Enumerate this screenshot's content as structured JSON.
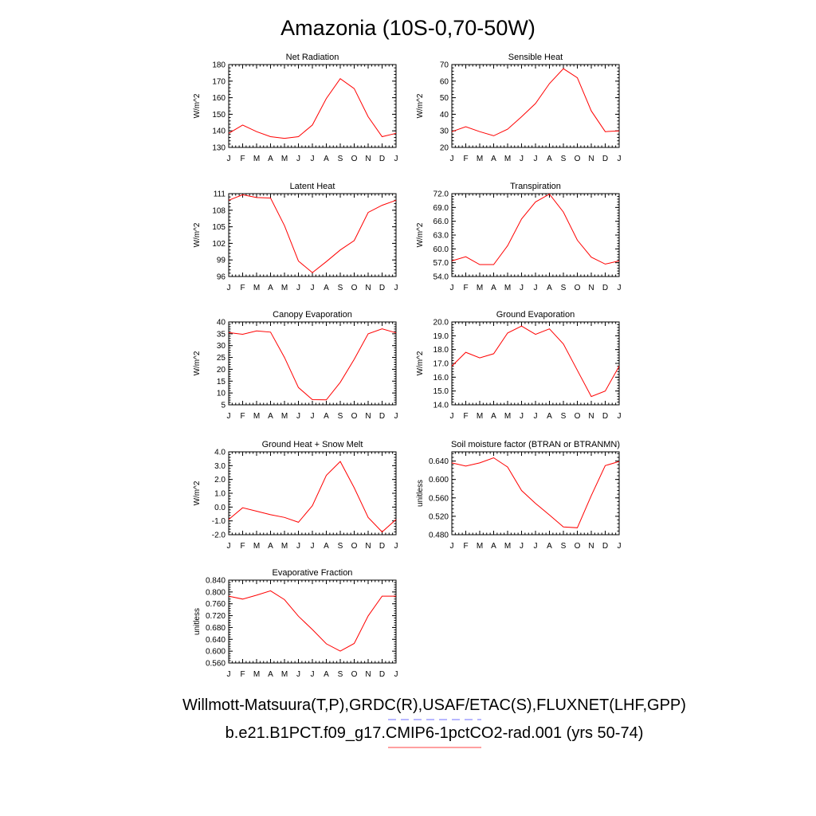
{
  "figure": {
    "title": "Amazonia (10S-0,70-50W)"
  },
  "months": [
    "J",
    "F",
    "M",
    "A",
    "M",
    "J",
    "J",
    "A",
    "S",
    "O",
    "N",
    "D",
    "J"
  ],
  "legend": [
    {
      "label": "Willmott-Matsuura(T,P),GRDC(R),USAF/ETAC(S),FLUXNET(LHF,GPP)",
      "color": "#7070ff",
      "dash": true
    },
    {
      "label": "b.e21.B1PCT.f09_g17.CMIP6-1pctCO2-rad.001 (yrs 50-74)",
      "color": "#ff4040",
      "dash": false
    }
  ],
  "chart_data": [
    {
      "type": "line",
      "title": "Net Radiation",
      "ylabel": "W/m^2",
      "ylim": [
        130,
        180
      ],
      "yticks": [
        "130",
        "140",
        "150",
        "160",
        "170",
        "180"
      ],
      "series": [
        {
          "color": "#ff0000",
          "values": [
            138.5,
            143.5,
            139.5,
            136.5,
            135.5,
            136.5,
            143.5,
            159.5,
            171.5,
            165.5,
            148.5,
            136.5,
            138.5
          ]
        }
      ]
    },
    {
      "type": "line",
      "title": "Sensible Heat",
      "ylabel": "W/m^2",
      "ylim": [
        20,
        70
      ],
      "yticks": [
        "20",
        "30",
        "40",
        "50",
        "60",
        "70"
      ],
      "series": [
        {
          "color": "#ff0000",
          "values": [
            29.5,
            32.5,
            29.5,
            27.0,
            31.0,
            38.5,
            46.5,
            58.5,
            67.5,
            62.0,
            42.0,
            29.5,
            30.0
          ]
        }
      ]
    },
    {
      "type": "line",
      "title": "Latent Heat",
      "ylabel": "W/m^2",
      "ylim": [
        96,
        111
      ],
      "yticks": [
        "96",
        "99",
        "102",
        "105",
        "108",
        "111"
      ],
      "series": [
        {
          "color": "#ff0000",
          "values": [
            109.8,
            110.8,
            110.3,
            110.2,
            105.2,
            98.8,
            96.7,
            98.7,
            100.8,
            102.5,
            107.6,
            108.9,
            109.8
          ]
        }
      ]
    },
    {
      "type": "line",
      "title": "Transpiration",
      "ylabel": "W/m^2",
      "ylim": [
        54,
        72
      ],
      "yticks": [
        "54.0",
        "57.0",
        "60.0",
        "63.0",
        "66.0",
        "69.0",
        "72.0"
      ],
      "series": [
        {
          "color": "#ff0000",
          "values": [
            57.4,
            58.3,
            56.6,
            56.6,
            60.7,
            66.5,
            70.2,
            71.9,
            68.0,
            61.9,
            58.2,
            56.7,
            57.4
          ]
        }
      ]
    },
    {
      "type": "line",
      "title": "Canopy Evaporation",
      "ylabel": "W/m^2",
      "ylim": [
        5,
        40
      ],
      "yticks": [
        "5",
        "10",
        "15",
        "20",
        "25",
        "30",
        "35",
        "40"
      ],
      "series": [
        {
          "color": "#ff0000",
          "values": [
            35.5,
            34.8,
            36.2,
            35.7,
            25.0,
            12.3,
            7.2,
            7.1,
            14.5,
            24.2,
            35.0,
            37.1,
            35.4
          ]
        }
      ]
    },
    {
      "type": "line",
      "title": "Ground Evaporation",
      "ylabel": "W/m^2",
      "ylim": [
        14,
        20
      ],
      "yticks": [
        "14.0",
        "15.0",
        "16.0",
        "17.0",
        "18.0",
        "19.0",
        "20.0"
      ],
      "series": [
        {
          "color": "#ff0000",
          "values": [
            16.8,
            17.8,
            17.4,
            17.7,
            19.2,
            19.7,
            19.1,
            19.5,
            18.4,
            16.5,
            14.6,
            15.0,
            16.8
          ]
        }
      ]
    },
    {
      "type": "line",
      "title": "Ground Heat + Snow Melt",
      "ylabel": "W/m^2",
      "ylim": [
        -2,
        4
      ],
      "yticks": [
        "-2.0",
        "-1.0",
        "0.0",
        "1.0",
        "2.0",
        "3.0",
        "4.0"
      ],
      "series": [
        {
          "color": "#ff0000",
          "values": [
            -0.9,
            -0.05,
            -0.3,
            -0.55,
            -0.75,
            -1.1,
            0.1,
            2.3,
            3.3,
            1.4,
            -0.75,
            -1.8,
            -0.9
          ]
        }
      ]
    },
    {
      "type": "line",
      "title": "Soil moisture factor (BTRAN or BTRANMN)",
      "ylabel": "unitless",
      "ylim": [
        0.48,
        0.66
      ],
      "yticks": [
        "0.480",
        "0.520",
        "0.560",
        "0.600",
        "0.640"
      ],
      "series": [
        {
          "color": "#ff0000",
          "values": [
            0.636,
            0.629,
            0.636,
            0.647,
            0.627,
            0.576,
            0.548,
            0.523,
            0.497,
            0.495,
            0.565,
            0.63,
            0.639
          ]
        }
      ]
    },
    {
      "type": "line",
      "title": "Evaporative Fraction",
      "ylabel": "unitless",
      "ylim": [
        0.56,
        0.84
      ],
      "yticks": [
        "0.560",
        "0.600",
        "0.640",
        "0.680",
        "0.720",
        "0.760",
        "0.800",
        "0.840"
      ],
      "series": [
        {
          "color": "#ff0000",
          "values": [
            0.786,
            0.776,
            0.789,
            0.804,
            0.774,
            0.718,
            0.673,
            0.625,
            0.6,
            0.626,
            0.719,
            0.786,
            0.786
          ]
        }
      ]
    }
  ]
}
